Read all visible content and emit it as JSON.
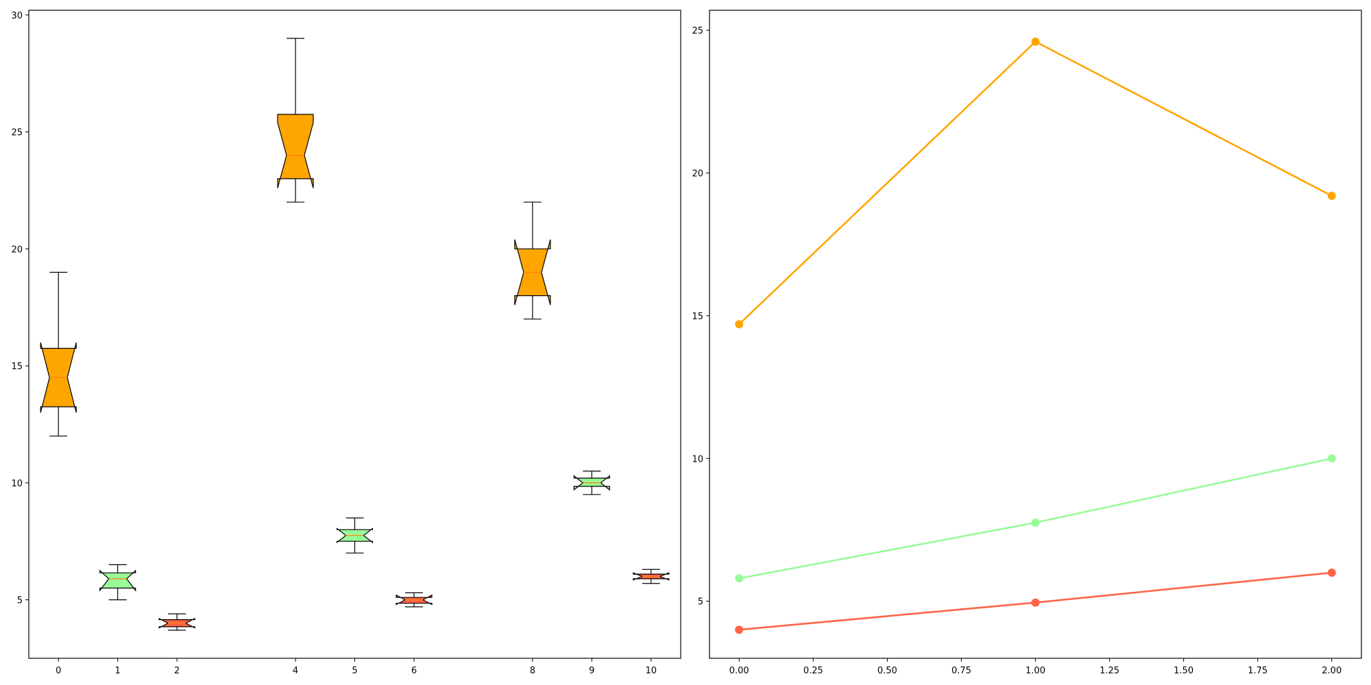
{
  "colors": {
    "series_1": "#FFA500",
    "series_2": "#98FB98",
    "series_3": "#FF6347",
    "outline": "#000000"
  },
  "chart_data": [
    {
      "type": "box",
      "title": "",
      "xlabel": "",
      "ylabel": "",
      "notched": true,
      "xlim": [
        -0.5,
        10.5
      ],
      "ylim": [
        2.5,
        30.2
      ],
      "x_ticks": [
        0,
        1,
        2,
        4,
        5,
        6,
        8,
        9,
        10
      ],
      "x_tick_labels": [
        "0",
        "1",
        "2",
        "4",
        "5",
        "6",
        "8",
        "9",
        "10"
      ],
      "y_ticks": [
        5,
        10,
        15,
        20,
        25,
        30
      ],
      "y_tick_labels": [
        "5",
        "10",
        "15",
        "20",
        "25",
        "30"
      ],
      "grid": false,
      "boxes": [
        {
          "position": 0,
          "color_key": "series_1",
          "whisker_low": 12,
          "q1": 13.25,
          "median": 14.5,
          "q3": 15.75,
          "whisker_high": 19,
          "notch_low": 13.0,
          "notch_high": 16.0
        },
        {
          "position": 1,
          "color_key": "series_2",
          "whisker_low": 5.0,
          "q1": 5.5,
          "median": 5.9,
          "q3": 6.15,
          "whisker_high": 6.5,
          "notch_low": 5.4,
          "notch_high": 6.25
        },
        {
          "position": 2,
          "color_key": "series_3",
          "whisker_low": 3.7,
          "q1": 3.85,
          "median": 4.0,
          "q3": 4.15,
          "whisker_high": 4.4,
          "notch_low": 3.8,
          "notch_high": 4.2
        },
        {
          "position": 4,
          "color_key": "series_1",
          "whisker_low": 22,
          "q1": 23,
          "median": 24,
          "q3": 25.75,
          "whisker_high": 29,
          "notch_low": 22.6,
          "notch_high": 25.4
        },
        {
          "position": 5,
          "color_key": "series_2",
          "whisker_low": 7.0,
          "q1": 7.5,
          "median": 7.75,
          "q3": 8.0,
          "whisker_high": 8.5,
          "notch_low": 7.45,
          "notch_high": 8.05
        },
        {
          "position": 6,
          "color_key": "series_3",
          "whisker_low": 4.7,
          "q1": 4.85,
          "median": 5.0,
          "q3": 5.1,
          "whisker_high": 5.3,
          "notch_low": 4.8,
          "notch_high": 5.2
        },
        {
          "position": 8,
          "color_key": "series_1",
          "whisker_low": 17,
          "q1": 18,
          "median": 19,
          "q3": 20,
          "whisker_high": 22,
          "notch_low": 17.6,
          "notch_high": 20.4
        },
        {
          "position": 9,
          "color_key": "series_2",
          "whisker_low": 9.5,
          "q1": 9.85,
          "median": 10.0,
          "q3": 10.2,
          "whisker_high": 10.5,
          "notch_low": 9.7,
          "notch_high": 10.3
        },
        {
          "position": 10,
          "color_key": "series_3",
          "whisker_low": 5.7,
          "q1": 5.9,
          "median": 6.0,
          "q3": 6.1,
          "whisker_high": 6.3,
          "notch_low": 5.85,
          "notch_high": 6.15
        }
      ]
    },
    {
      "type": "line",
      "title": "",
      "xlabel": "",
      "ylabel": "",
      "xlim": [
        -0.1,
        2.1
      ],
      "ylim": [
        3.0,
        25.7
      ],
      "x_ticks": [
        0.0,
        0.25,
        0.5,
        0.75,
        1.0,
        1.25,
        1.5,
        1.75,
        2.0
      ],
      "x_tick_labels": [
        "0.00",
        "0.25",
        "0.50",
        "0.75",
        "1.00",
        "1.25",
        "1.50",
        "1.75",
        "2.00"
      ],
      "y_ticks": [
        5,
        10,
        15,
        20,
        25
      ],
      "y_tick_labels": [
        "5",
        "10",
        "15",
        "20",
        "25"
      ],
      "grid": false,
      "x": [
        0,
        1,
        2
      ],
      "series": [
        {
          "color_key": "series_1",
          "values": [
            14.7,
            24.6,
            19.2
          ]
        },
        {
          "color_key": "series_2",
          "values": [
            5.8,
            7.75,
            10.0
          ]
        },
        {
          "color_key": "series_3",
          "values": [
            4.0,
            4.95,
            6.0
          ]
        }
      ]
    }
  ]
}
